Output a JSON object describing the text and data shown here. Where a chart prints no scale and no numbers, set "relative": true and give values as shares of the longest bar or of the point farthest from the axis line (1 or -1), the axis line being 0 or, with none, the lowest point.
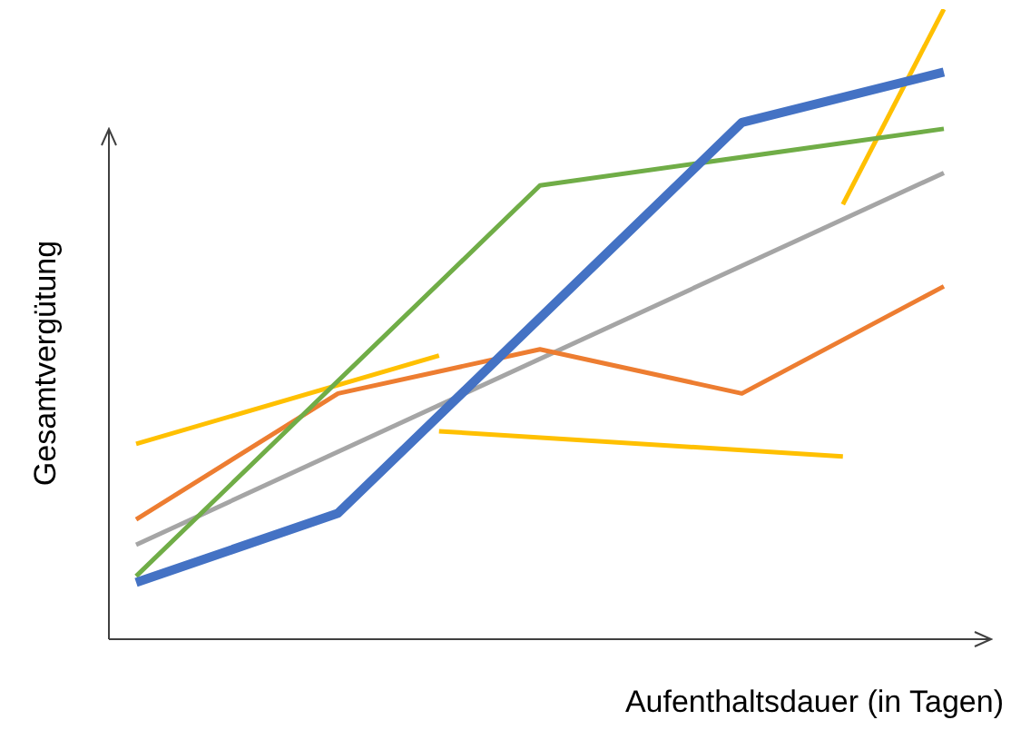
{
  "chart_data": {
    "type": "line",
    "relative": true,
    "xlabel": "Aufenthaltsdauer (in Tagen)",
    "ylabel": "Gesamtvergütung",
    "categories": [
      null,
      null,
      null,
      null,
      null,
      null,
      null,
      null,
      null
    ],
    "tick_labels": false,
    "legend": false,
    "marker": "none",
    "line_style": "solid",
    "series": [
      {
        "color": "#4472c4",
        "values": [
          0.09,
          null,
          0.2,
          null,
          null,
          null,
          0.82,
          null,
          0.9
        ]
      },
      {
        "color": "#70ad47",
        "values": [
          0.1,
          null,
          null,
          null,
          0.72,
          null,
          null,
          null,
          0.81
        ]
      },
      {
        "color": "#ed7d31",
        "values": [
          0.19,
          null,
          0.39,
          null,
          0.46,
          null,
          0.39,
          null,
          0.56
        ]
      },
      {
        "color": "#a5a5a5",
        "values": [
          0.15,
          null,
          null,
          null,
          null,
          null,
          null,
          null,
          0.74
        ]
      },
      {
        "color": "#ffc000",
        "values": [
          0.31,
          null,
          null,
          0.45,
          null,
          null,
          null,
          null,
          null
        ]
      },
      {
        "color": "#ffc000",
        "values": [
          null,
          null,
          null,
          0.33,
          null,
          null,
          null,
          0.29,
          null
        ]
      },
      {
        "color": "#ffc000",
        "values": [
          null,
          null,
          null,
          null,
          null,
          null,
          null,
          0.69,
          1.0
        ]
      }
    ]
  }
}
